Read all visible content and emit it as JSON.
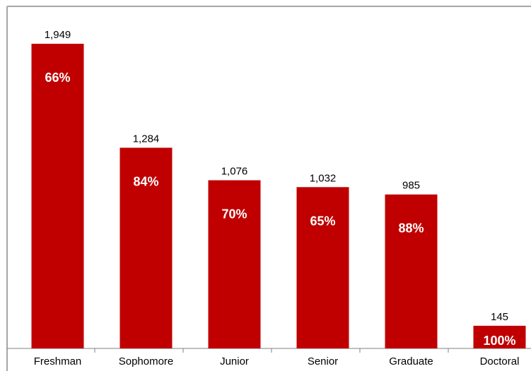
{
  "chart_data": {
    "type": "bar",
    "title": "",
    "xlabel": "",
    "ylabel": "",
    "categories": [
      "Freshman",
      "Sophomore",
      "Junior",
      "Senior",
      "Graduate",
      "Doctoral"
    ],
    "values": [
      1949,
      1284,
      1076,
      1032,
      985,
      145
    ],
    "value_labels": [
      "1,949",
      "1,284",
      "1,076",
      "1,032",
      "985",
      "145"
    ],
    "percent_labels": [
      "66%",
      "84%",
      "70%",
      "65%",
      "88%",
      "100%"
    ],
    "ylim": [
      0,
      2100
    ],
    "grid": false,
    "legend": "none",
    "colors": {
      "bar": "#c00000",
      "frame": "#a6a6a6",
      "axis": "#808080"
    }
  }
}
